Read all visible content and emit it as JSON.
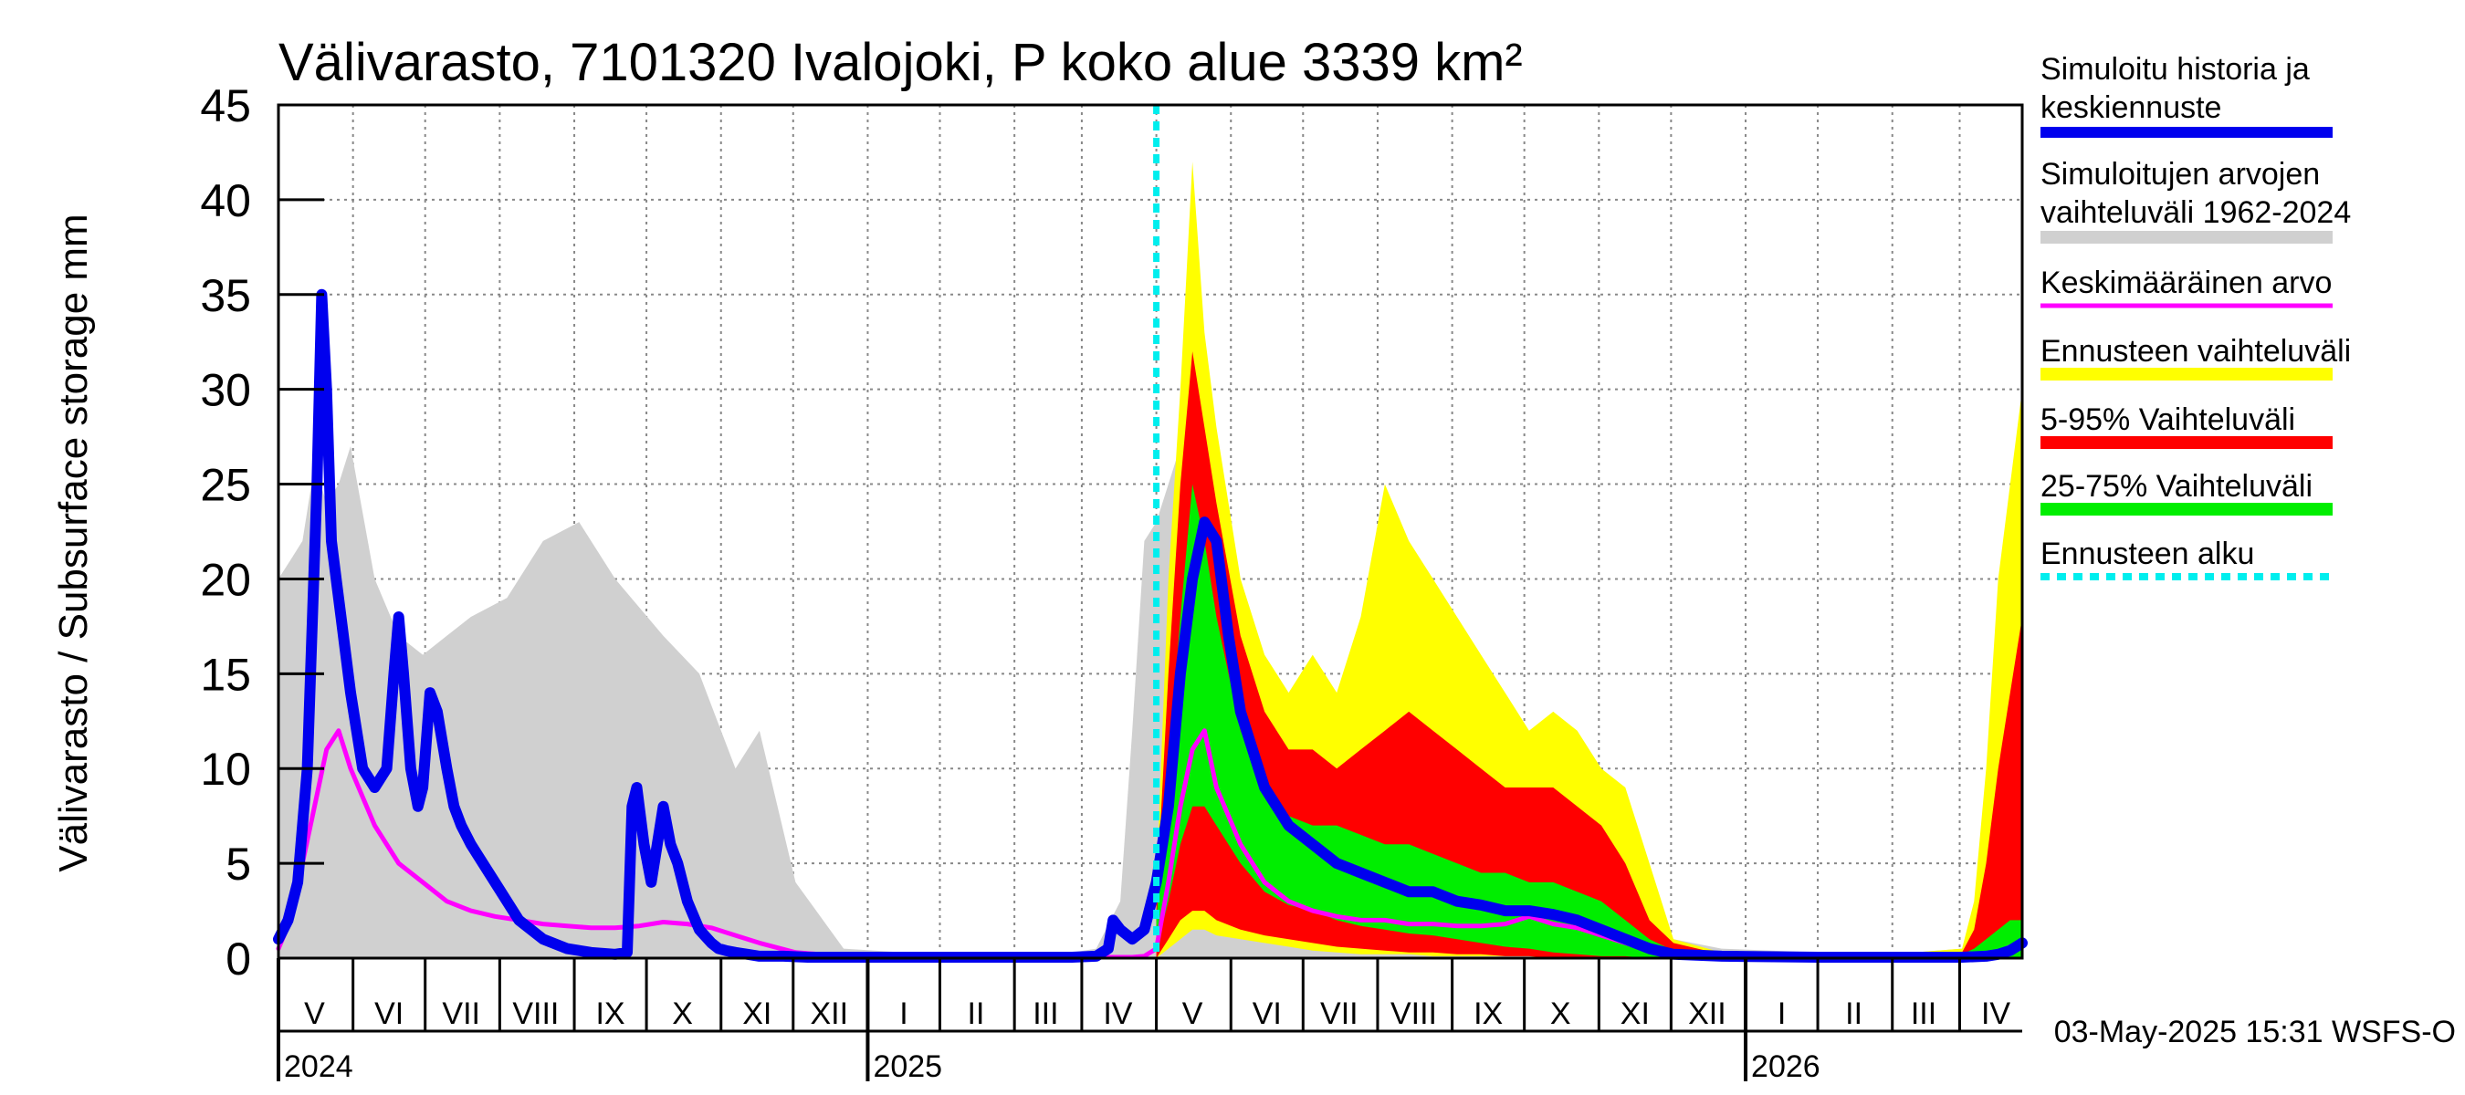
{
  "chart_data": {
    "type": "area",
    "title": "Välivarasto, 7101320 Ivalojoki, P koko alue 3339 km²",
    "ylabel": "Välivarasto / Subsurface storage  mm",
    "xlabel": "",
    "ylim": [
      0,
      45
    ],
    "y_ticks": [
      0,
      5,
      10,
      15,
      20,
      25,
      30,
      35,
      40,
      45
    ],
    "grid": true,
    "timestamp": "03-May-2025 15:31 WSFS-O",
    "x_range_days": [
      0,
      725
    ],
    "month_labels": [
      {
        "label": "V",
        "day": 15
      },
      {
        "label": "VI",
        "day": 46
      },
      {
        "label": "VII",
        "day": 76
      },
      {
        "label": "VIII",
        "day": 107
      },
      {
        "label": "IX",
        "day": 138
      },
      {
        "label": "X",
        "day": 168
      },
      {
        "label": "XI",
        "day": 199
      },
      {
        "label": "XII",
        "day": 229
      },
      {
        "label": "I",
        "day": 260
      },
      {
        "label": "II",
        "day": 290
      },
      {
        "label": "III",
        "day": 319
      },
      {
        "label": "IV",
        "day": 349
      },
      {
        "label": "V",
        "day": 380
      },
      {
        "label": "VI",
        "day": 411
      },
      {
        "label": "VII",
        "day": 441
      },
      {
        "label": "VIII",
        "day": 472
      },
      {
        "label": "IX",
        "day": 503
      },
      {
        "label": "X",
        "day": 533
      },
      {
        "label": "XI",
        "day": 564
      },
      {
        "label": "XII",
        "day": 594
      },
      {
        "label": "I",
        "day": 625
      },
      {
        "label": "II",
        "day": 655
      },
      {
        "label": "III",
        "day": 684
      },
      {
        "label": "IV",
        "day": 714
      }
    ],
    "month_boundaries": [
      31,
      61,
      92,
      123,
      153,
      184,
      214,
      245,
      275,
      306,
      334,
      365,
      396,
      426,
      457,
      488,
      518,
      549,
      579,
      610,
      640,
      671,
      699
    ],
    "year_labels": [
      {
        "label": "2024",
        "day": 0
      },
      {
        "label": "2025",
        "day": 245
      },
      {
        "label": "2026",
        "day": 610
      }
    ],
    "forecast_start_day": 365,
    "legend": [
      {
        "label": "Simuloitu historia ja keskiennuste",
        "color": "#0000ee"
      },
      {
        "label": "Simuloitujen arvojen vaihteluväli 1962-2024",
        "color": "#d0d0d0"
      },
      {
        "label": "Keskimääräinen arvo",
        "color": "#ff00ff"
      },
      {
        "label": "Ennusteen vaihteluväli",
        "color": "#ffff00"
      },
      {
        "label": "5-95% Vaihteluväli",
        "color": "#ff0000"
      },
      {
        "label": "25-75% Vaihteluväli",
        "color": "#00ee00"
      },
      {
        "label": "Ennusteen alku",
        "color": "#00eeee"
      }
    ],
    "series": [
      {
        "name": "Simuloitujen arvojen vaihteluväli 1962-2024",
        "color": "#d0d0d0",
        "x": [
          0,
          5,
          10,
          15,
          20,
          25,
          30,
          40,
          50,
          60,
          70,
          80,
          95,
          110,
          125,
          140,
          160,
          175,
          190,
          200,
          215,
          235,
          260,
          300,
          330,
          340,
          350,
          355,
          360,
          365,
          370,
          375,
          380,
          385,
          390,
          400,
          410,
          420,
          430,
          440,
          450,
          460,
          470,
          480,
          490,
          500,
          510,
          520,
          530,
          540,
          550,
          560,
          570,
          580,
          600,
          640,
          680,
          700,
          705,
          710,
          715,
          720,
          725
        ],
        "upper": [
          20,
          21,
          22,
          26,
          24,
          25,
          27,
          20,
          17,
          16,
          17,
          18,
          19,
          22,
          23,
          20,
          17,
          15,
          10,
          12,
          4,
          0.5,
          0.3,
          0.3,
          0.3,
          0.5,
          3,
          12,
          22,
          23,
          25,
          27,
          28,
          26,
          22,
          18,
          15,
          12,
          14,
          12,
          16,
          20,
          19,
          15,
          14,
          13,
          12,
          11,
          10,
          9,
          7,
          6,
          3,
          1,
          0.5,
          0.3,
          0.3,
          0.5,
          2,
          5,
          10,
          15,
          20
        ],
        "lower": [
          0,
          0,
          0,
          0,
          0,
          0,
          0,
          0,
          0,
          0,
          0,
          0,
          0,
          0,
          0,
          0,
          0,
          0,
          0,
          0,
          0,
          0,
          0,
          0,
          0,
          0,
          0,
          0,
          0,
          0,
          0,
          0,
          0,
          0,
          0,
          0,
          0,
          0,
          0,
          0,
          0,
          0,
          0,
          0,
          0,
          0,
          0,
          0,
          0,
          0,
          0,
          0,
          0,
          0,
          0,
          0,
          0,
          0,
          0,
          0,
          0,
          0,
          0
        ]
      },
      {
        "name": "Ennusteen vaihteluväli",
        "color": "#ffff00",
        "x": [
          365,
          370,
          375,
          380,
          385,
          390,
          400,
          410,
          420,
          430,
          440,
          450,
          460,
          470,
          480,
          490,
          500,
          510,
          520,
          530,
          540,
          550,
          560,
          570,
          580,
          600,
          640,
          680,
          700,
          705,
          710,
          715,
          720,
          725
        ],
        "upper": [
          4,
          20,
          30,
          42,
          33,
          28,
          20,
          16,
          14,
          16,
          14,
          18,
          25,
          22,
          20,
          18,
          16,
          14,
          12,
          13,
          12,
          10,
          9,
          5,
          1,
          0.3,
          0.3,
          0.3,
          0.5,
          3,
          10,
          20,
          25,
          30
        ],
        "lower": [
          0,
          0.5,
          1,
          1.5,
          1.5,
          1.2,
          1,
          0.8,
          0.6,
          0.4,
          0.3,
          0.2,
          0.2,
          0.2,
          0.1,
          0.1,
          0.1,
          0.1,
          0.1,
          0,
          0,
          0,
          0,
          0,
          0,
          0,
          0,
          0,
          0,
          0,
          0,
          0,
          0,
          0
        ]
      },
      {
        "name": "5-95% Vaihteluväli",
        "color": "#ff0000",
        "x": [
          365,
          370,
          375,
          380,
          385,
          390,
          400,
          410,
          420,
          430,
          440,
          450,
          460,
          470,
          480,
          490,
          500,
          510,
          520,
          530,
          540,
          550,
          560,
          570,
          580,
          600,
          640,
          680,
          700,
          705,
          710,
          715,
          720,
          725
        ],
        "upper": [
          3,
          15,
          25,
          32,
          28,
          24,
          17,
          13,
          11,
          11,
          10,
          11,
          12,
          13,
          12,
          11,
          10,
          9,
          9,
          9,
          8,
          7,
          5,
          2,
          0.8,
          0.2,
          0.2,
          0.2,
          0.3,
          1.5,
          5,
          10,
          14,
          18
        ],
        "lower": [
          0,
          1,
          2,
          2.5,
          2.5,
          2,
          1.5,
          1.2,
          1,
          0.8,
          0.6,
          0.5,
          0.4,
          0.3,
          0.3,
          0.2,
          0.2,
          0.1,
          0.1,
          0,
          0,
          0,
          0,
          0,
          0,
          0,
          0,
          0,
          0,
          0,
          0,
          0,
          0,
          0
        ]
      },
      {
        "name": "25-75% Vaihteluväli",
        "color": "#00ee00",
        "x": [
          365,
          370,
          375,
          380,
          385,
          390,
          400,
          410,
          420,
          430,
          440,
          450,
          460,
          470,
          480,
          490,
          500,
          510,
          520,
          530,
          540,
          550,
          560,
          570,
          580,
          600,
          640,
          680,
          700,
          705,
          710,
          715,
          720,
          725
        ],
        "upper": [
          2,
          10,
          18,
          25,
          22,
          18,
          12,
          9,
          7.5,
          7,
          7,
          6.5,
          6,
          6,
          5.5,
          5,
          4.5,
          4.5,
          4,
          4,
          3.5,
          3,
          2,
          1,
          0.4,
          0.2,
          0.2,
          0.2,
          0.2,
          0.5,
          1,
          1.5,
          2,
          2
        ],
        "lower": [
          0.5,
          3,
          6,
          8,
          8,
          7,
          5,
          3.5,
          2.8,
          2.5,
          2,
          1.7,
          1.5,
          1.3,
          1.2,
          1,
          0.8,
          0.6,
          0.5,
          0.3,
          0.2,
          0.1,
          0.1,
          0,
          0,
          0,
          0,
          0,
          0,
          0,
          0,
          0,
          0,
          0
        ]
      },
      {
        "name": "Keskimääräinen arvo",
        "color": "#ff00ff",
        "x": [
          0,
          5,
          10,
          15,
          20,
          25,
          30,
          40,
          50,
          60,
          70,
          80,
          90,
          100,
          110,
          120,
          130,
          140,
          150,
          160,
          170,
          180,
          190,
          200,
          215,
          235,
          260,
          300,
          340,
          355,
          360,
          365,
          370,
          375,
          380,
          385,
          390,
          400,
          410,
          420,
          430,
          440,
          450,
          460,
          470,
          480,
          490,
          500,
          510,
          520,
          530,
          540,
          550,
          560,
          570,
          580,
          600,
          640,
          680,
          700,
          710,
          715,
          720,
          725
        ],
        "values": [
          0.5,
          2,
          5,
          8,
          11,
          12,
          10,
          7,
          5,
          4,
          3,
          2.5,
          2.2,
          2,
          1.8,
          1.7,
          1.6,
          1.6,
          1.7,
          1.9,
          1.8,
          1.6,
          1.2,
          0.8,
          0.3,
          0.1,
          0.05,
          0.05,
          0.05,
          0.05,
          0.1,
          0.5,
          4,
          8,
          11,
          12,
          9,
          6,
          4,
          3,
          2.5,
          2.2,
          2,
          2,
          1.8,
          1.8,
          1.7,
          1.7,
          1.8,
          2.2,
          1.8,
          1.6,
          1.2,
          0.8,
          0.4,
          0.2,
          0.1,
          0.05,
          0.05,
          0.05,
          0.1,
          0.3,
          0.6,
          0.8
        ]
      },
      {
        "name": "Simuloitu historia ja keskiennuste",
        "color": "#0000ee",
        "x": [
          0,
          4,
          8,
          12,
          16,
          18,
          20,
          22,
          24,
          26,
          30,
          35,
          40,
          45,
          48,
          50,
          52,
          55,
          58,
          60,
          63,
          66,
          70,
          73,
          76,
          80,
          85,
          90,
          100,
          110,
          120,
          130,
          140,
          145,
          147,
          149,
          152,
          155,
          160,
          163,
          166,
          170,
          175,
          180,
          183,
          186,
          190,
          195,
          200,
          210,
          220,
          240,
          260,
          300,
          330,
          340,
          345,
          347,
          350,
          355,
          360,
          365,
          370,
          375,
          380,
          385,
          390,
          395,
          400,
          410,
          420,
          430,
          440,
          450,
          460,
          470,
          480,
          490,
          500,
          510,
          520,
          530,
          540,
          550,
          560,
          570,
          580,
          600,
          640,
          680,
          700,
          710,
          715,
          720,
          725
        ],
        "values": [
          1,
          2,
          4,
          10,
          25,
          35,
          30,
          22,
          20,
          18,
          14,
          10,
          9,
          10,
          15,
          18,
          15,
          10,
          8,
          9,
          14,
          13,
          10,
          8,
          7,
          6,
          5,
          4,
          2,
          1,
          0.5,
          0.3,
          0.2,
          0.3,
          8,
          9,
          6,
          4,
          8,
          6,
          5,
          3,
          1.5,
          0.8,
          0.5,
          0.4,
          0.3,
          0.2,
          0.1,
          0.1,
          0.05,
          0.05,
          0.05,
          0.05,
          0.05,
          0.1,
          0.5,
          2,
          1.5,
          1,
          1.5,
          4,
          8,
          15,
          20,
          23,
          22,
          17,
          13,
          9,
          7,
          6,
          5,
          4.5,
          4,
          3.5,
          3.5,
          3,
          2.8,
          2.5,
          2.5,
          2.3,
          2,
          1.5,
          1,
          0.5,
          0.2,
          0.1,
          0.05,
          0.05,
          0.05,
          0.1,
          0.2,
          0.4,
          0.8
        ]
      }
    ]
  }
}
